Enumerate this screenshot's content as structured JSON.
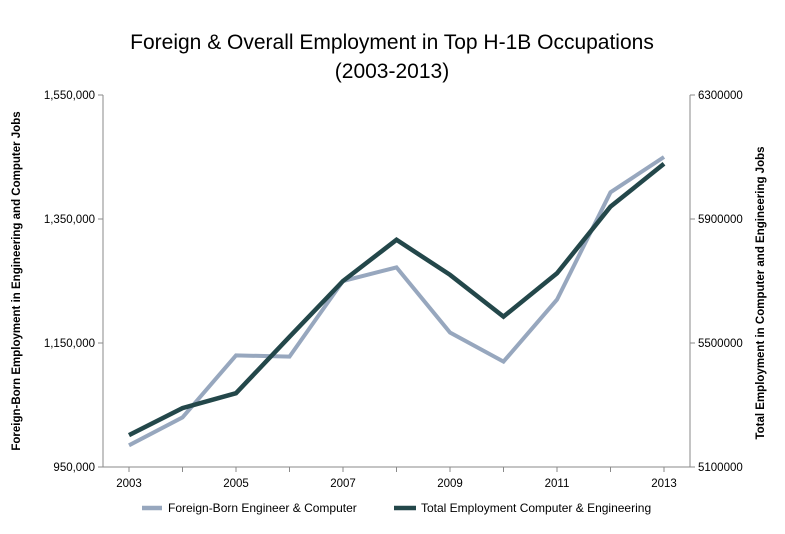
{
  "chart_data": {
    "type": "line",
    "title": "Foreign & Overall Employment in Top H-1B Occupations",
    "subtitle": "(2003-2013)",
    "x": [
      2003,
      2004,
      2005,
      2006,
      2007,
      2008,
      2009,
      2010,
      2011,
      2012,
      2013
    ],
    "x_tick_labels": [
      "2003",
      "2005",
      "2007",
      "2009",
      "2011",
      "2013"
    ],
    "ylabel_left": "Foreign-Born Employment in Engineering and Computer Jobs",
    "ylabel_right": "Total Employment in Computer and Engineering Jobs",
    "ylim_left": [
      950000,
      1550000
    ],
    "ylim_right": [
      5100000,
      6300000
    ],
    "y_tick_labels_left": [
      "950,000",
      "1,150,000",
      "1,350,000",
      "1,550,000"
    ],
    "y_tick_labels_right": [
      "5100000",
      "5500000",
      "5900000",
      "6300000"
    ],
    "series": [
      {
        "name": "Foreign-Born Engineer & Computer",
        "axis": "left",
        "color": "#97a7be",
        "values": [
          985000,
          1030000,
          1130000,
          1128000,
          1250000,
          1272000,
          1167000,
          1120000,
          1220000,
          1393000,
          1450000
        ]
      },
      {
        "name": "Total Employment Computer & Engineering",
        "axis": "right",
        "color": "#23474a",
        "values": [
          5203000,
          5290000,
          5338000,
          5520000,
          5700000,
          5833000,
          5720000,
          5585000,
          5725000,
          5940000,
          6078000
        ]
      }
    ],
    "legend_position": "bottom",
    "grid": false
  }
}
